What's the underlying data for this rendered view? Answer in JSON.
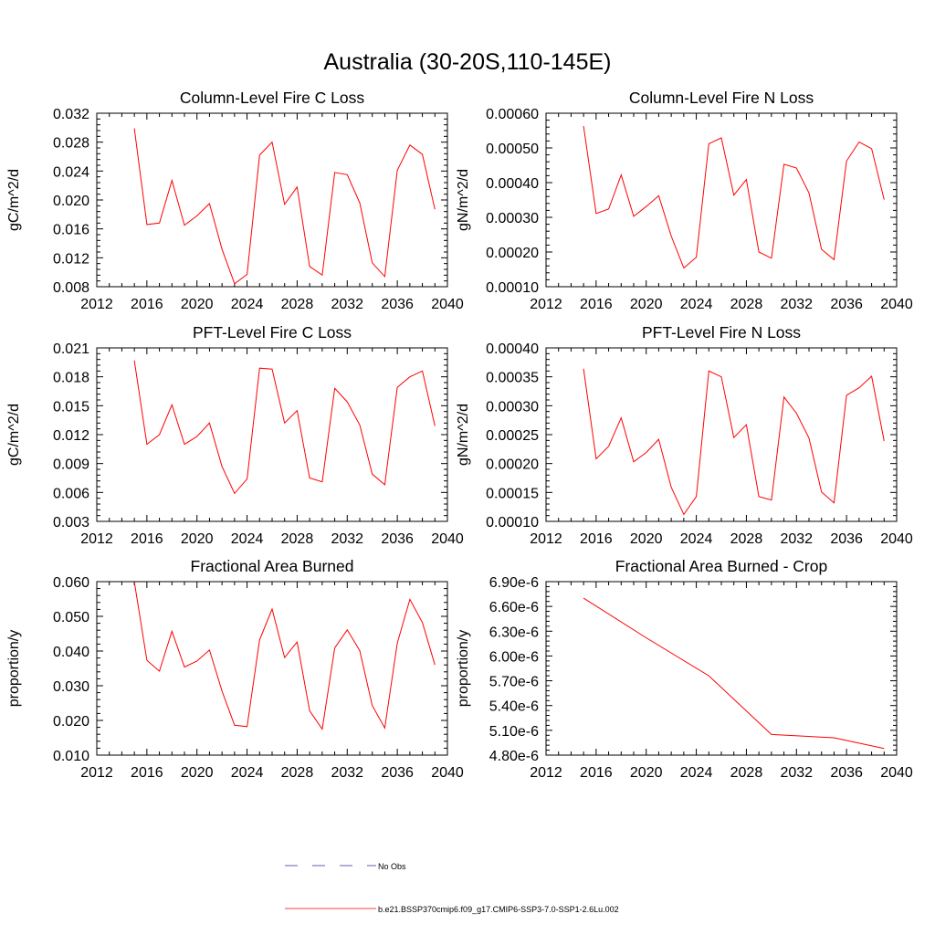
{
  "title": "Australia (30-20S,110-145E)",
  "legend": {
    "items": [
      {
        "label": "No Obs",
        "color": "#2a2aa0",
        "dash": true
      },
      {
        "label": "b.e21.BSSP370cmip6.f09_g17.CMIP6-SSP3-7.0-SSP1-2.6Lu.002",
        "color": "#ff0000",
        "dash": false
      }
    ]
  },
  "chart_data": [
    {
      "type": "line",
      "title": "Column-Level Fire C Loss",
      "ylabel": "gC/m^2/d",
      "xlim": [
        2012,
        2040
      ],
      "xticks": [
        2012,
        2016,
        2020,
        2024,
        2028,
        2032,
        2036,
        2040
      ],
      "ylim": [
        0.008,
        0.032
      ],
      "yticks": [
        "0.008",
        "0.012",
        "0.016",
        "0.020",
        "0.024",
        "0.028",
        "0.032"
      ],
      "color": "#ff0000",
      "x": [
        2015,
        2016,
        2017,
        2018,
        2019,
        2020,
        2021,
        2022,
        2023,
        2024,
        2025,
        2026,
        2027,
        2028,
        2029,
        2030,
        2031,
        2032,
        2033,
        2034,
        2035,
        2036,
        2037,
        2038,
        2039
      ],
      "y": [
        0.0299,
        0.0166,
        0.0168,
        0.0227,
        0.0165,
        0.0178,
        0.0195,
        0.0132,
        0.0084,
        0.0097,
        0.0262,
        0.028,
        0.0194,
        0.0218,
        0.0108,
        0.0096,
        0.0238,
        0.0235,
        0.0196,
        0.0113,
        0.0094,
        0.0241,
        0.0276,
        0.0263,
        0.0187
      ]
    },
    {
      "type": "line",
      "title": "Column-Level Fire N Loss",
      "ylabel": "gN/m^2/d",
      "xlim": [
        2012,
        2040
      ],
      "xticks": [
        2012,
        2016,
        2020,
        2024,
        2028,
        2032,
        2036,
        2040
      ],
      "ylim": [
        0.0001,
        0.0006
      ],
      "yticks": [
        "0.00010",
        "0.00020",
        "0.00030",
        "0.00040",
        "0.00050",
        "0.00060"
      ],
      "color": "#ff0000",
      "x": [
        2015,
        2016,
        2017,
        2018,
        2019,
        2020,
        2021,
        2022,
        2023,
        2024,
        2025,
        2026,
        2027,
        2028,
        2029,
        2030,
        2031,
        2032,
        2033,
        2034,
        2035,
        2036,
        2037,
        2038,
        2039
      ],
      "y": [
        0.000563,
        0.000311,
        0.000324,
        0.000422,
        0.000303,
        0.000331,
        0.000362,
        0.000246,
        0.000154,
        0.000185,
        0.000512,
        0.000529,
        0.000364,
        0.000409,
        0.0002,
        0.000182,
        0.000453,
        0.000442,
        0.00037,
        0.000208,
        0.000178,
        0.000462,
        0.000517,
        0.000498,
        0.000351
      ]
    },
    {
      "type": "line",
      "title": "PFT-Level Fire C Loss",
      "ylabel": "gC/m^2/d",
      "xlim": [
        2012,
        2040
      ],
      "xticks": [
        2012,
        2016,
        2020,
        2024,
        2028,
        2032,
        2036,
        2040
      ],
      "ylim": [
        0.003,
        0.021
      ],
      "yticks": [
        "0.003",
        "0.006",
        "0.009",
        "0.012",
        "0.015",
        "0.018",
        "0.021"
      ],
      "color": "#ff0000",
      "x": [
        2015,
        2016,
        2017,
        2018,
        2019,
        2020,
        2021,
        2022,
        2023,
        2024,
        2025,
        2026,
        2027,
        2028,
        2029,
        2030,
        2031,
        2032,
        2033,
        2034,
        2035,
        2036,
        2037,
        2038,
        2039
      ],
      "y": [
        0.0197,
        0.011,
        0.012,
        0.0151,
        0.011,
        0.0118,
        0.0132,
        0.0087,
        0.0059,
        0.0074,
        0.0189,
        0.0188,
        0.0132,
        0.0145,
        0.0075,
        0.0071,
        0.0168,
        0.0154,
        0.013,
        0.0079,
        0.0068,
        0.0169,
        0.018,
        0.0186,
        0.0129
      ]
    },
    {
      "type": "line",
      "title": "PFT-Level Fire N Loss",
      "ylabel": "gN/m^2/d",
      "xlim": [
        2012,
        2040
      ],
      "xticks": [
        2012,
        2016,
        2020,
        2024,
        2028,
        2032,
        2036,
        2040
      ],
      "ylim": [
        0.0001,
        0.0004
      ],
      "yticks": [
        "0.00010",
        "0.00015",
        "0.00020",
        "0.00025",
        "0.00030",
        "0.00035",
        "0.00040"
      ],
      "color": "#ff0000",
      "x": [
        2015,
        2016,
        2017,
        2018,
        2019,
        2020,
        2021,
        2022,
        2023,
        2024,
        2025,
        2026,
        2027,
        2028,
        2029,
        2030,
        2031,
        2032,
        2033,
        2034,
        2035,
        2036,
        2037,
        2038,
        2039
      ],
      "y": [
        0.000364,
        0.000208,
        0.00023,
        0.000279,
        0.000203,
        0.000219,
        0.000242,
        0.000159,
        0.000112,
        0.000143,
        0.00036,
        0.00035,
        0.000245,
        0.000267,
        0.000143,
        0.000137,
        0.000315,
        0.000287,
        0.000244,
        0.000151,
        0.000132,
        0.000318,
        0.000331,
        0.000351,
        0.000239
      ]
    },
    {
      "type": "line",
      "title": "Fractional Area Burned",
      "ylabel": "proportion/y",
      "xlim": [
        2012,
        2040
      ],
      "xticks": [
        2012,
        2016,
        2020,
        2024,
        2028,
        2032,
        2036,
        2040
      ],
      "ylim": [
        0.01,
        0.06
      ],
      "yticks": [
        "0.010",
        "0.020",
        "0.030",
        "0.040",
        "0.050",
        "0.060"
      ],
      "color": "#ff0000",
      "x": [
        2015,
        2016,
        2017,
        2018,
        2019,
        2020,
        2021,
        2022,
        2023,
        2024,
        2025,
        2026,
        2027,
        2028,
        2029,
        2030,
        2031,
        2032,
        2033,
        2034,
        2035,
        2036,
        2037,
        2038,
        2039
      ],
      "y": [
        0.06,
        0.0373,
        0.0342,
        0.0457,
        0.0354,
        0.0371,
        0.0403,
        0.0285,
        0.0186,
        0.0182,
        0.0432,
        0.0521,
        0.0381,
        0.0426,
        0.0228,
        0.0175,
        0.0409,
        0.0461,
        0.0401,
        0.0243,
        0.0178,
        0.0423,
        0.0549,
        0.0482,
        0.036
      ]
    },
    {
      "type": "line",
      "title": "Fractional Area Burned - Crop",
      "ylabel": "proportion/y",
      "xlim": [
        2012,
        2040
      ],
      "xticks": [
        2012,
        2016,
        2020,
        2024,
        2028,
        2032,
        2036,
        2040
      ],
      "ylim": [
        4.8e-06,
        6.9e-06
      ],
      "yticks": [
        "4.80e-6",
        "5.10e-6",
        "5.40e-6",
        "5.70e-6",
        "6.00e-6",
        "6.30e-6",
        "6.60e-6",
        "6.90e-6"
      ],
      "color": "#ff0000",
      "x": [
        2015,
        2020,
        2025,
        2030,
        2035,
        2039
      ],
      "y": [
        6.7e-06,
        6.22e-06,
        5.76e-06,
        5.05e-06,
        5.01e-06,
        4.88e-06
      ]
    }
  ]
}
